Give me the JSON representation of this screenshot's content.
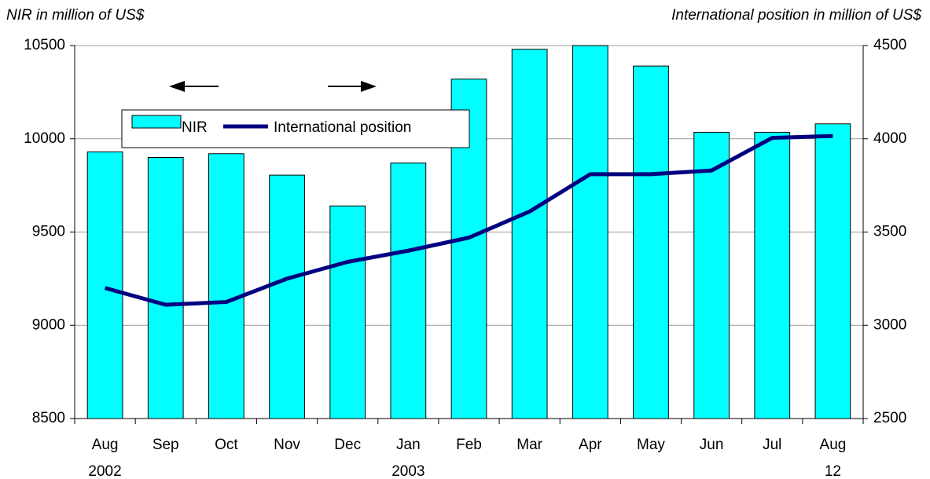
{
  "chart_data": {
    "type": "bar-line",
    "y_title": "NIR in million of US$",
    "y2_title": "International position in million of US$",
    "categories": [
      "Aug",
      "Sep",
      "Oct",
      "Nov",
      "Dec",
      "Jan",
      "Feb",
      "Mar",
      "Apr",
      "May",
      "Jun",
      "Jul",
      "Aug"
    ],
    "category_sublabels": [
      "2002",
      null,
      null,
      null,
      null,
      "2003",
      null,
      null,
      null,
      null,
      null,
      null,
      "12"
    ],
    "series": [
      {
        "name": "NIR",
        "type": "bar",
        "color": "#00ffff",
        "values": [
          9930,
          9900,
          9920,
          9805,
          9640,
          9870,
          10320,
          10480,
          10500,
          10390,
          10035,
          10035,
          10080
        ]
      },
      {
        "name": "International position",
        "type": "line",
        "axis": "y2",
        "color": "#000080",
        "values": [
          3200,
          3110,
          3125,
          3250,
          3340,
          3400,
          3470,
          3610,
          3810,
          3810,
          3830,
          4005,
          4015
        ]
      }
    ],
    "ylim": [
      8500,
      10500
    ],
    "yticks": [
      8500,
      9000,
      9500,
      10000,
      10500
    ],
    "y2lim": [
      2500,
      4500
    ],
    "y2ticks": [
      2500,
      3000,
      3500,
      4000,
      4500
    ],
    "grid": true
  }
}
